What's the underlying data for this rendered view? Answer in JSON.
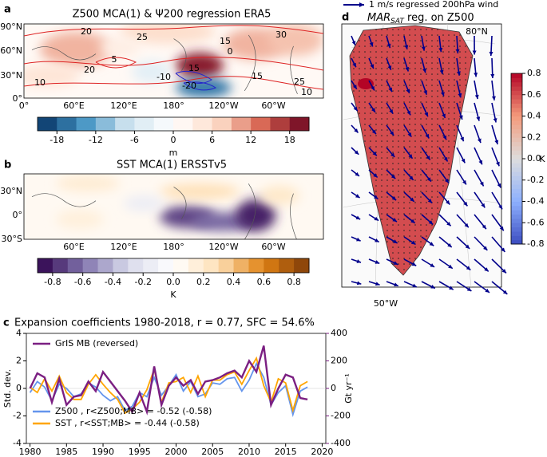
{
  "chart_data": [
    {
      "type": "map",
      "panel": "a",
      "title": "Z500 MCA(1) & Ψ200 regression ERA5",
      "lat_labels": [
        "90°N",
        "60°N",
        "30°N",
        "0°"
      ],
      "lon_labels": [
        "0°",
        "60°E",
        "120°E",
        "180°",
        "120°W",
        "60°W"
      ],
      "contour_labels": [
        "20",
        "25",
        "15",
        "30",
        "0",
        "5",
        "20",
        "10",
        "15",
        "-10",
        "-20",
        "15",
        "25",
        "10"
      ],
      "colormap": "RdBu_r",
      "colorbar_lim": [
        -21,
        21
      ],
      "colorbar_ticks": [
        -18,
        -12,
        -6,
        0,
        6,
        12,
        18
      ],
      "colorbar_label": "m",
      "discrete": true
    },
    {
      "type": "map",
      "panel": "b",
      "title": "SST MCA(1) ERSSTv5",
      "lat_labels": [
        "30°N",
        "0°",
        "30°S"
      ],
      "lon_labels": [
        "60°E",
        "120°E",
        "180°",
        "120°W",
        "60°W"
      ],
      "colormap": "PuOr_r",
      "colorbar_lim": [
        -0.9,
        0.9
      ],
      "colorbar_ticks": [
        -0.8,
        -0.6,
        -0.4,
        -0.2,
        {
          "value": 0,
          "label": "0.0"
        },
        0.2,
        0.4,
        0.6,
        0.8
      ],
      "colorbar_label": "K",
      "discrete": true
    },
    {
      "type": "line",
      "panel": "c",
      "title": "Expansion coefficients 1980-2018, r = 0.77, SFC = 54.6%",
      "x": [
        1980,
        1981,
        1982,
        1983,
        1984,
        1985,
        1986,
        1987,
        1988,
        1989,
        1990,
        1991,
        1992,
        1993,
        1994,
        1995,
        1996,
        1997,
        1998,
        1999,
        2000,
        2001,
        2002,
        2003,
        2004,
        2005,
        2006,
        2007,
        2008,
        2009,
        2010,
        2011,
        2012,
        2013,
        2014,
        2015,
        2016,
        2017,
        2018
      ],
      "xlim": [
        1979.5,
        2020.5
      ],
      "xticks": [
        1980,
        1985,
        1990,
        1995,
        2000,
        2005,
        2010,
        2015,
        2020
      ],
      "ylim": [
        -4,
        4
      ],
      "yticks": [
        -4,
        -2,
        0,
        2,
        4
      ],
      "ylabel": "Std. dev.",
      "y2lim": [
        -400,
        400
      ],
      "y2ticks": [
        -400,
        -200,
        0,
        200,
        400
      ],
      "y2label": "Gt yr⁻¹",
      "y2color": "#7b1f82",
      "series": [
        {
          "name": "GrIS MB (reversed)",
          "color": "#7b1f82",
          "axis": "y2",
          "legend_loc": "upper left",
          "values": [
            0,
            110,
            80,
            -100,
            70,
            -120,
            -60,
            -50,
            50,
            -20,
            120,
            50,
            -20,
            -90,
            -170,
            -30,
            -170,
            160,
            -120,
            20,
            80,
            20,
            60,
            -40,
            50,
            60,
            80,
            110,
            130,
            80,
            200,
            120,
            310,
            -120,
            0,
            100,
            80,
            -70,
            -80
          ]
        },
        {
          "name": "Z500 , r<Z500;MB> = -0.52 (-0.58)",
          "color": "#6495ed",
          "legend_loc": "lower left",
          "values": [
            -0.3,
            0.5,
            0.1,
            -0.9,
            0.3,
            0.0,
            -0.6,
            -0.4,
            0.4,
            0.1,
            -0.5,
            -0.9,
            -0.6,
            -1.6,
            -1.3,
            -0.3,
            -0.6,
            0.8,
            -0.5,
            0.2,
            1.0,
            -0.2,
            0.5,
            -0.6,
            -0.4,
            0.4,
            0.3,
            0.7,
            0.8,
            -0.2,
            0.6,
            1.8,
            0.8,
            -1.2,
            -0.3,
            0.2,
            -1.9,
            -0.2,
            0.1
          ]
        },
        {
          "name": "SST , r<SST;MB> = -0.44 (-0.58)",
          "color": "#ffa500",
          "legend_loc": "lower left",
          "values": [
            0.1,
            -0.3,
            0.7,
            -0.2,
            0.9,
            -0.3,
            -0.8,
            -0.8,
            0.3,
            1.0,
            0.3,
            -0.3,
            -0.8,
            -1.8,
            -1.5,
            -1.0,
            -0.1,
            1.4,
            -1.0,
            0.4,
            0.5,
            0.8,
            -0.3,
            0.9,
            -0.6,
            0.6,
            0.6,
            1.0,
            1.2,
            0.3,
            1.3,
            2.2,
            0.2,
            -1.0,
            0.7,
            0.4,
            -1.6,
            0.2,
            0.5
          ]
        }
      ]
    },
    {
      "type": "map",
      "panel": "d",
      "title": {
        "main": "MAR",
        "sub": "SAT",
        "rest": " reg. on Z500"
      },
      "wind_legend": "1 m/s regressed 200hPa wind",
      "lat_labels": [
        "80°N"
      ],
      "lon_labels": [
        "50°W"
      ],
      "colormap": "coolwarm",
      "colorbar_lim": [
        -0.8,
        0.8
      ],
      "colorbar_ticks": [
        0.8,
        0.6,
        0.4,
        0.2,
        {
          "value": 0,
          "label": "0.0"
        },
        -0.2,
        -0.4,
        -0.6,
        -0.8
      ],
      "colorbar_label": "K",
      "discrete": false
    }
  ]
}
